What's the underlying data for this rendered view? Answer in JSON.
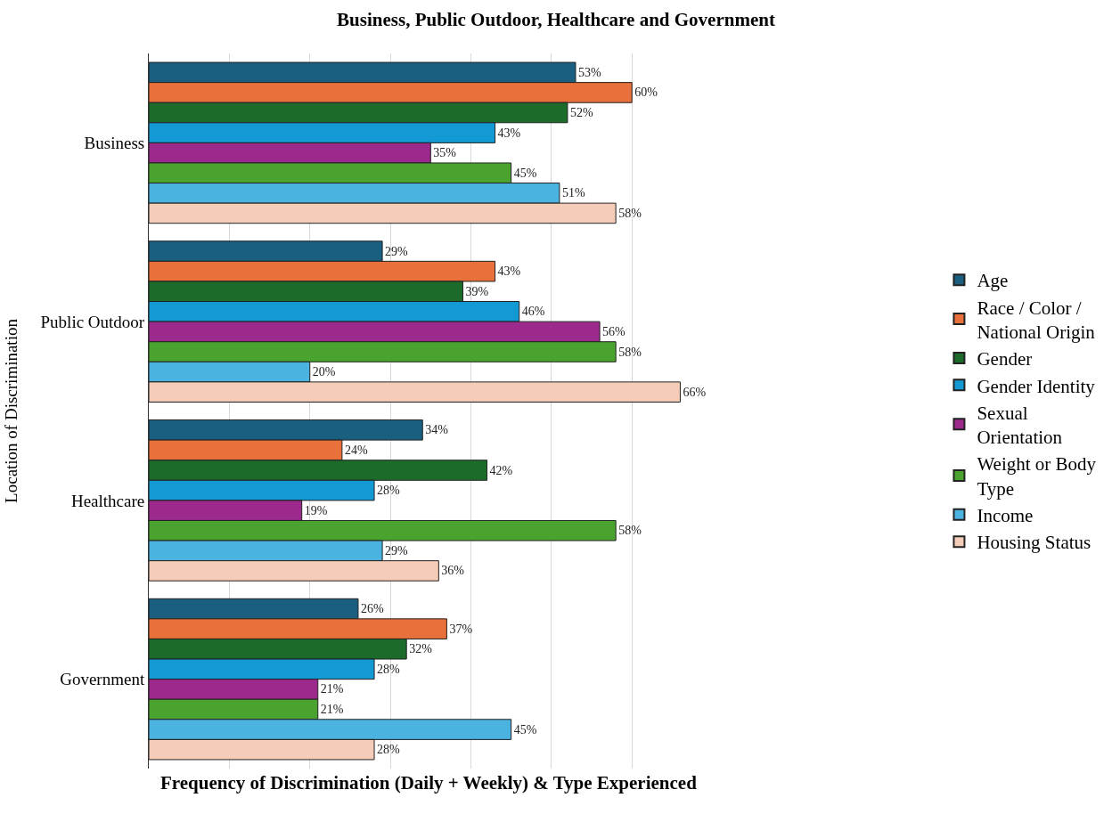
{
  "chart_data": {
    "type": "bar",
    "orientation": "horizontal",
    "title": "Business, Public Outdoor, Healthcare and Government",
    "xlabel": "Frequency of Discrimination (Daily + Weekly) & Type Experienced",
    "ylabel": "Location of Discrimination",
    "categories": [
      "Business",
      "Public Outdoor",
      "Healthcare",
      "Government"
    ],
    "series": [
      {
        "name": "Age",
        "color": "#1a5e80",
        "values": [
          53,
          29,
          34,
          26
        ],
        "value_labels": [
          "53%",
          "29%",
          "34%",
          "26%"
        ]
      },
      {
        "name": "Race / Color / National Origin",
        "color": "#e8703a",
        "values": [
          60,
          43,
          24,
          37
        ],
        "value_labels": [
          "60%",
          "43%",
          "24%",
          "37%"
        ]
      },
      {
        "name": "Gender",
        "color": "#1c6b2a",
        "values": [
          52,
          39,
          42,
          32
        ],
        "value_labels": [
          "52%",
          "39%",
          "42%",
          "32%"
        ]
      },
      {
        "name": "Gender Identity",
        "color": "#139ad4",
        "values": [
          43,
          46,
          28,
          28
        ],
        "value_labels": [
          "43%",
          "46%",
          "28%",
          "28%"
        ]
      },
      {
        "name": "Sexual Orientation",
        "color": "#9c2a8c",
        "values": [
          35,
          56,
          19,
          21
        ],
        "value_labels": [
          "35%",
          "56%",
          "19%",
          "21%"
        ]
      },
      {
        "name": "Weight or Body Type",
        "color": "#4aa32f",
        "values": [
          45,
          58,
          58,
          21
        ],
        "value_labels": [
          "45%",
          "58%",
          "58%",
          "21%"
        ]
      },
      {
        "name": "Income",
        "color": "#4ab3e0",
        "values": [
          51,
          20,
          29,
          45
        ],
        "value_labels": [
          "51%",
          "20%",
          "29%",
          "45%"
        ]
      },
      {
        "name": "Housing Status",
        "color": "#f5ccb8",
        "values": [
          58,
          66,
          36,
          28
        ],
        "value_labels": [
          "58%",
          "66%",
          "36%",
          "28%"
        ]
      }
    ],
    "tick_labels": "y",
    "grid": "x",
    "legend": "right"
  }
}
